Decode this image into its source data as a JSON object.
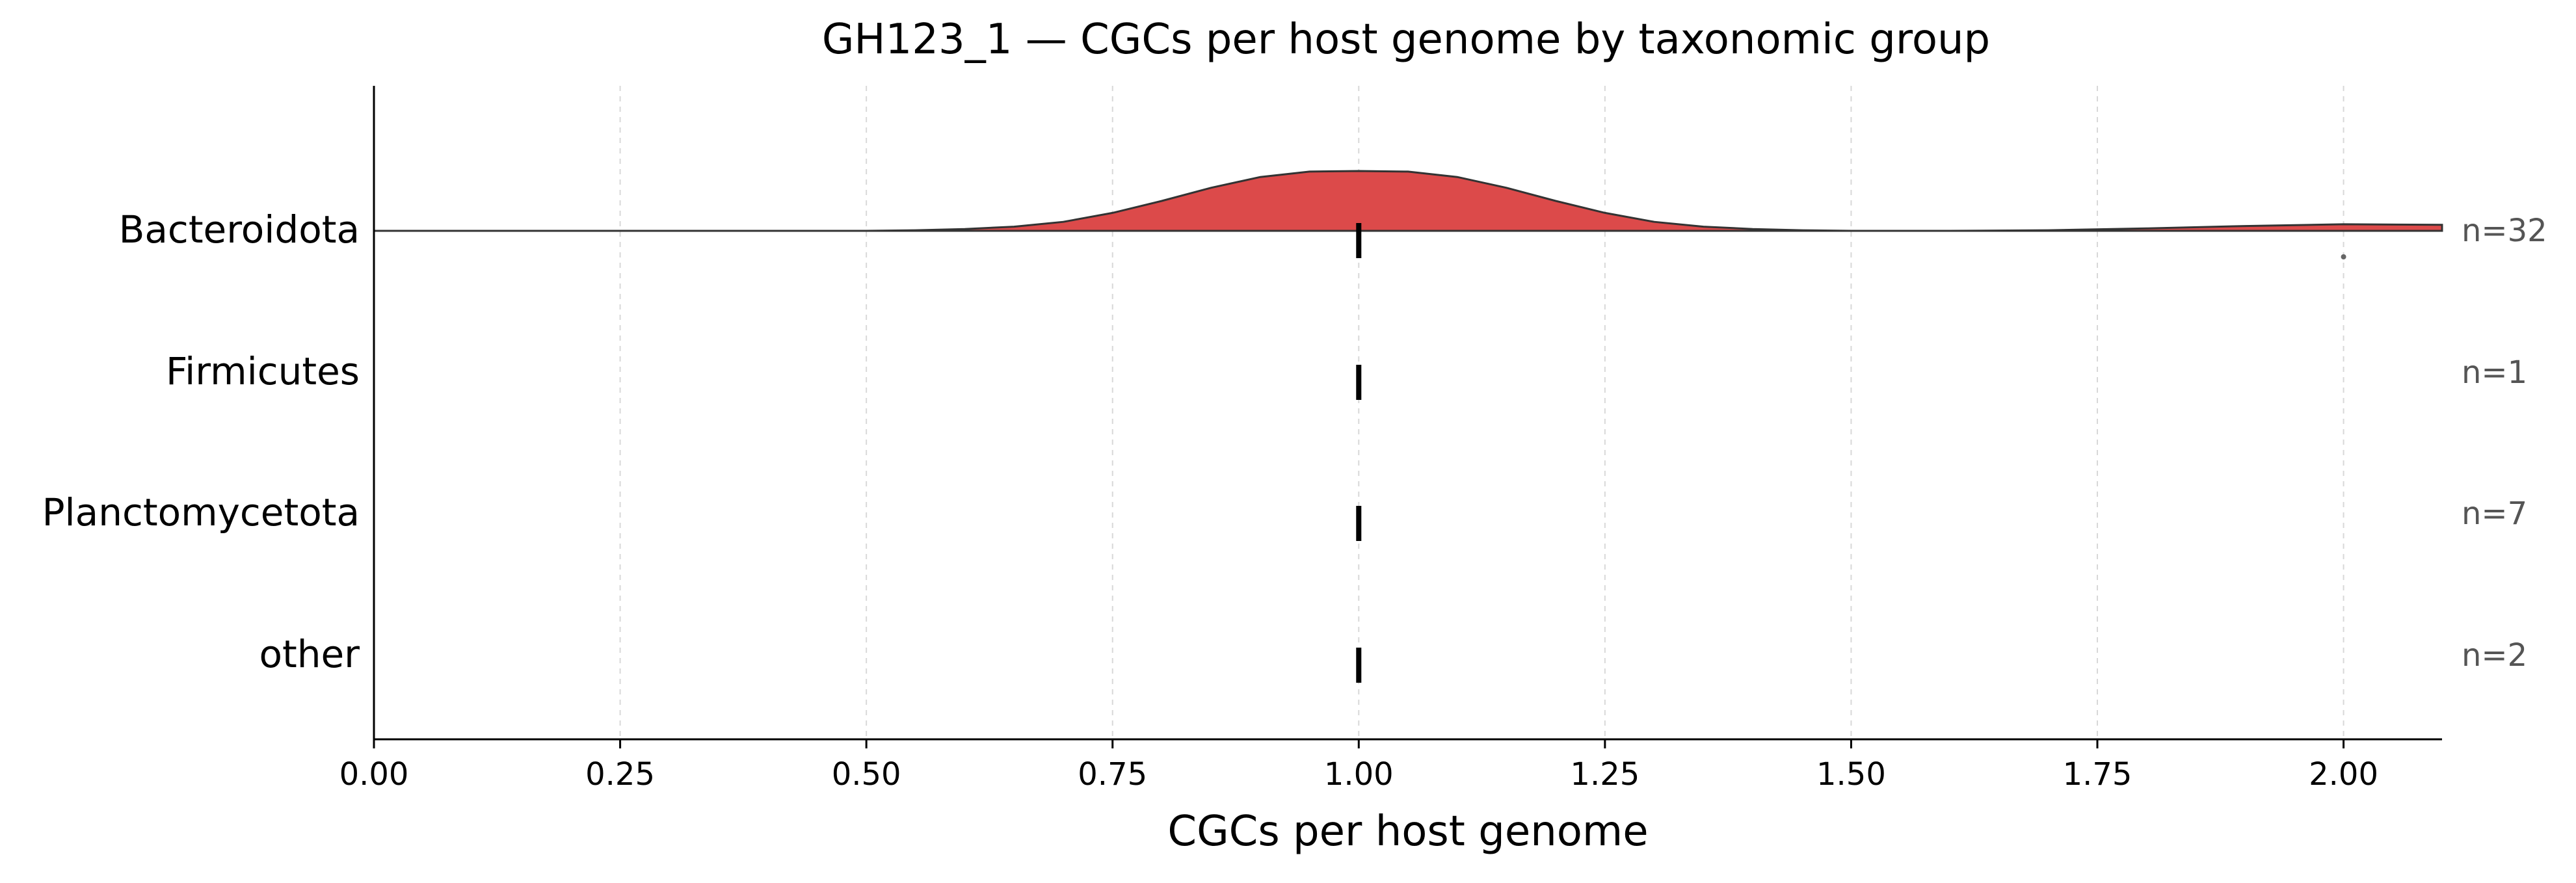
{
  "chart_data": {
    "type": "ridgeline",
    "title": "GH123_1 — CGCs per host genome by taxonomic group",
    "xlabel": "CGCs per host genome",
    "ylabel": "",
    "xlim": [
      0.0,
      2.1
    ],
    "xticks": [
      "0.00",
      "0.25",
      "0.50",
      "0.75",
      "1.00",
      "1.25",
      "1.50",
      "1.75",
      "2.00"
    ],
    "grid": "vertical dashed",
    "groups": [
      {
        "name": "Bacteroidota",
        "n_label": "n=32",
        "n": 32,
        "has_density": true,
        "fill_color": "#dc4a4a",
        "median": 1.0,
        "outliers": [
          2.0
        ],
        "density": {
          "x": [
            0.0,
            0.3,
            0.5,
            0.55,
            0.6,
            0.65,
            0.7,
            0.75,
            0.8,
            0.85,
            0.9,
            0.95,
            1.0,
            1.05,
            1.1,
            1.15,
            1.2,
            1.25,
            1.3,
            1.35,
            1.4,
            1.45,
            1.5,
            1.6,
            1.7,
            1.8,
            1.9,
            2.0,
            2.1
          ],
          "y": [
            0.0,
            0.0,
            0.0,
            0.01,
            0.03,
            0.07,
            0.15,
            0.3,
            0.5,
            0.72,
            0.9,
            0.99,
            1.0,
            0.99,
            0.9,
            0.72,
            0.5,
            0.3,
            0.15,
            0.07,
            0.03,
            0.01,
            0.0,
            0.0,
            0.01,
            0.04,
            0.08,
            0.11,
            0.1
          ]
        }
      },
      {
        "name": "Firmicutes",
        "n_label": "n=1",
        "n": 1,
        "has_density": false,
        "median": 1.0
      },
      {
        "name": "Planctomycetota",
        "n_label": "n=7",
        "n": 7,
        "has_density": false,
        "median": 1.0
      },
      {
        "name": "other",
        "n_label": "n=2",
        "n": 2,
        "has_density": false,
        "median": 1.0
      }
    ]
  }
}
